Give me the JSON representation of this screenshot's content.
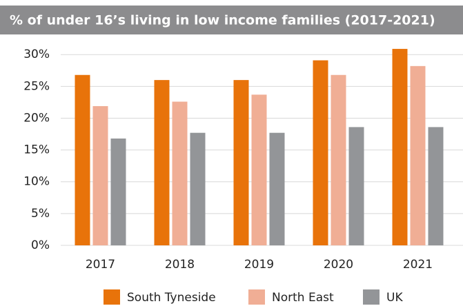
{
  "chart_data": {
    "type": "bar",
    "title": "% of under 16’s living in low income families (2017-2021)",
    "categories": [
      "2017",
      "2018",
      "2019",
      "2020",
      "2021"
    ],
    "series": [
      {
        "name": "South Tyneside",
        "color": "#e8730a",
        "values": [
          26.8,
          26.0,
          26.0,
          29.1,
          30.9
        ]
      },
      {
        "name": "North East",
        "color": "#f0ae95",
        "values": [
          21.9,
          22.6,
          23.7,
          26.8,
          28.2
        ]
      },
      {
        "name": "UK",
        "color": "#939598",
        "values": [
          16.8,
          17.7,
          17.7,
          18.6,
          18.6
        ]
      }
    ],
    "ylim": [
      0,
      31
    ],
    "yticks": [
      {
        "value": 0,
        "label": "0%"
      },
      {
        "value": 5,
        "label": "5%"
      },
      {
        "value": 10,
        "label": "10%"
      },
      {
        "value": 15,
        "label": "15%"
      },
      {
        "value": 20,
        "label": "20%"
      },
      {
        "value": 25,
        "label": "25%"
      },
      {
        "value": 30,
        "label": "30%"
      }
    ],
    "grid": true
  }
}
